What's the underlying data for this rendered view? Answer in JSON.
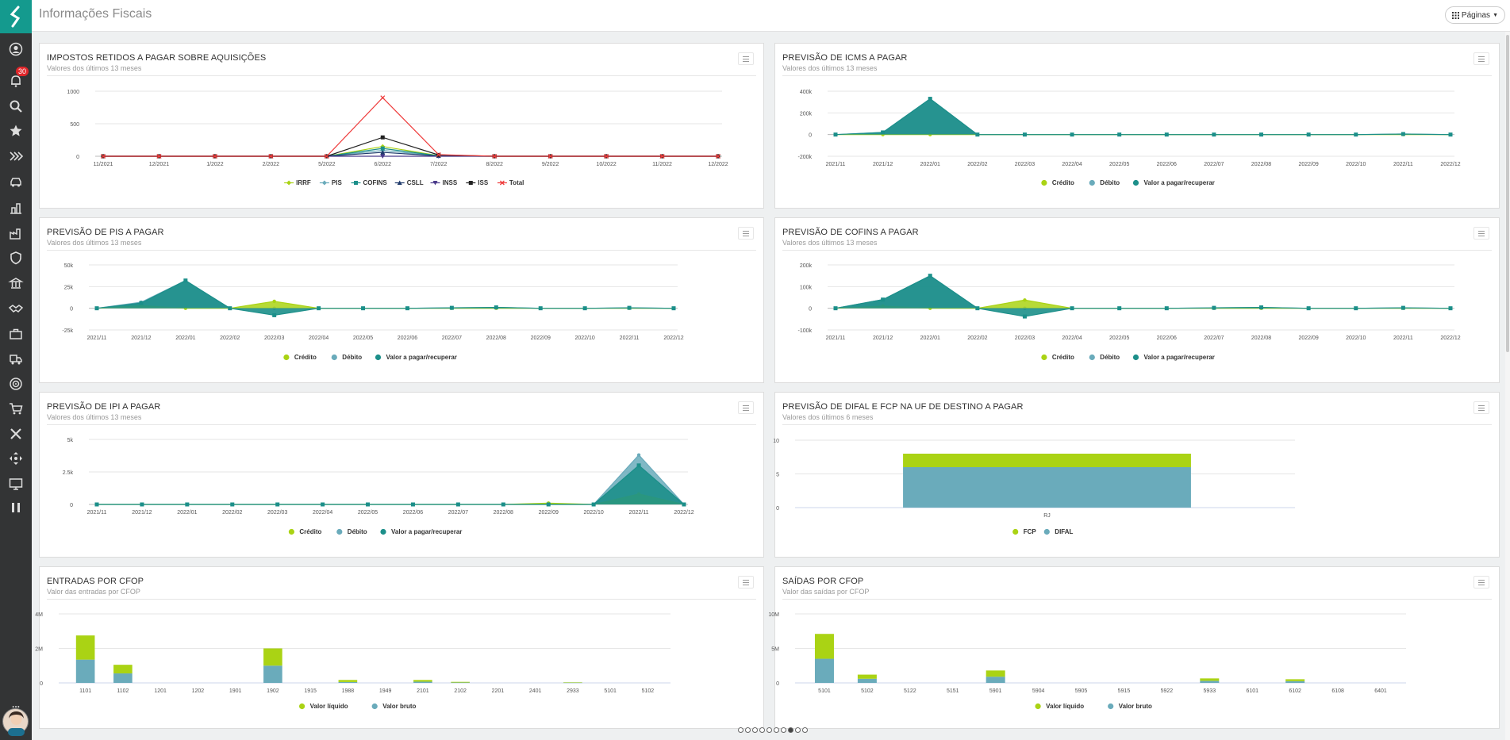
{
  "app": {
    "title": "Informações Fiscais",
    "pages_label": "Páginas",
    "notification_count": "30"
  },
  "sidebar": {
    "icons": [
      "user-icon",
      "bell-icon",
      "search-icon",
      "star-icon",
      "forward-icon",
      "car-icon",
      "building-icon",
      "factory-icon",
      "shield-icon",
      "bank-icon",
      "handshake-icon",
      "briefcase-icon",
      "truck-icon",
      "target-icon",
      "cart-icon",
      "x-icon",
      "cross-arrows-icon",
      "monitor-icon",
      "pause-icon"
    ],
    "more_label": "..."
  },
  "pager": {
    "total": 10,
    "active": 7
  },
  "colors": {
    "green": "#aad314",
    "blue": "#6aabbb",
    "teal": "#1c8f8a",
    "red": "#ee3b3b",
    "black": "#222"
  },
  "panels": [
    {
      "title": "IMPOSTOS RETIDOS A PAGAR SOBRE AQUISIÇÕES",
      "subtitle": "Valores dos últimos 13 meses"
    },
    {
      "title": "PREVISÃO DE ICMS A PAGAR",
      "subtitle": "Valores dos últimos 13 meses"
    },
    {
      "title": "PREVISÃO DE PIS A PAGAR",
      "subtitle": "Valores dos últimos 13 meses"
    },
    {
      "title": "PREVISÃO DE COFINS A PAGAR",
      "subtitle": "Valores dos últimos 13 meses"
    },
    {
      "title": "PREVISÃO DE IPI A PAGAR",
      "subtitle": "Valores dos últimos 13 meses"
    },
    {
      "title": "PREVISÃO DE DIFAL E FCP NA UF DE DESTINO A PAGAR",
      "subtitle": "Valores dos últimos 6 meses"
    },
    {
      "title": "ENTRADAS POR CFOP",
      "subtitle": "Valor das entradas por CFOP"
    },
    {
      "title": "SAÍDAS POR CFOP",
      "subtitle": "Valor das saídas por CFOP"
    }
  ],
  "chart_data": [
    {
      "type": "line",
      "categories": [
        "11/2021",
        "12/2021",
        "1/2022",
        "2/2022",
        "5/2022",
        "6/2022",
        "7/2022",
        "8/2022",
        "9/2022",
        "10/2022",
        "11/2022",
        "12/2022"
      ],
      "yticks": [
        "0",
        "500",
        "1000"
      ],
      "ylim": [
        0,
        1000
      ],
      "series": [
        {
          "name": "IRRF",
          "color": "#aad314",
          "marker": "diamond",
          "values": [
            0,
            0,
            0,
            0,
            0,
            150,
            10,
            0,
            0,
            0,
            0,
            0
          ]
        },
        {
          "name": "PIS",
          "color": "#6aabbb",
          "marker": "diamond",
          "values": [
            0,
            0,
            0,
            0,
            0,
            90,
            5,
            0,
            0,
            0,
            0,
            0
          ]
        },
        {
          "name": "COFINS",
          "color": "#1c8f8a",
          "marker": "square",
          "values": [
            0,
            0,
            0,
            0,
            0,
            120,
            8,
            0,
            0,
            0,
            0,
            0
          ]
        },
        {
          "name": "CSLL",
          "color": "#1f3a6b",
          "marker": "triangle",
          "values": [
            0,
            0,
            0,
            0,
            0,
            60,
            4,
            0,
            0,
            0,
            0,
            0
          ]
        },
        {
          "name": "INSS",
          "color": "#4a3a8a",
          "marker": "triangle-down",
          "values": [
            0,
            0,
            0,
            0,
            0,
            0,
            0,
            0,
            0,
            0,
            0,
            0
          ]
        },
        {
          "name": "ISS",
          "color": "#222222",
          "marker": "square",
          "values": [
            0,
            0,
            0,
            0,
            0,
            290,
            20,
            0,
            0,
            0,
            0,
            0
          ]
        },
        {
          "name": "Total",
          "color": "#ee3b3b",
          "marker": "x",
          "values": [
            0,
            0,
            0,
            0,
            0,
            900,
            25,
            0,
            0,
            0,
            0,
            0
          ]
        }
      ]
    },
    {
      "type": "area",
      "categories": [
        "2021/11",
        "2021/12",
        "2022/01",
        "2022/02",
        "2022/03",
        "2022/04",
        "2022/05",
        "2022/06",
        "2022/07",
        "2022/08",
        "2022/09",
        "2022/10",
        "2022/11",
        "2022/12"
      ],
      "yticks": [
        "-200k",
        "0",
        "200k",
        "400k"
      ],
      "ylim": [
        -200000,
        400000
      ],
      "series": [
        {
          "name": "Crédito",
          "color": "#aad314",
          "values": [
            0,
            0,
            0,
            0,
            0,
            0,
            0,
            0,
            0,
            0,
            0,
            0,
            0,
            0
          ]
        },
        {
          "name": "Débito",
          "color": "#6aabbb",
          "values": [
            0,
            20000,
            330000,
            0,
            0,
            0,
            0,
            0,
            0,
            0,
            0,
            0,
            5000,
            0
          ]
        },
        {
          "name": "Valor a pagar/recuperar",
          "color": "#1c8f8a",
          "values": [
            0,
            20000,
            330000,
            0,
            0,
            0,
            0,
            0,
            0,
            0,
            0,
            0,
            5000,
            0
          ]
        }
      ]
    },
    {
      "type": "area",
      "categories": [
        "2021/11",
        "2021/12",
        "2022/01",
        "2022/02",
        "2022/03",
        "2022/04",
        "2022/05",
        "2022/06",
        "2022/07",
        "2022/08",
        "2022/09",
        "2022/10",
        "2022/11",
        "2022/12"
      ],
      "yticks": [
        "-25k",
        "0",
        "25k",
        "50k"
      ],
      "ylim": [
        -25000,
        50000
      ],
      "series": [
        {
          "name": "Crédito",
          "color": "#aad314",
          "values": [
            0,
            3000,
            0,
            0,
            8000,
            0,
            0,
            0,
            0,
            0,
            0,
            0,
            0,
            0
          ]
        },
        {
          "name": "Débito",
          "color": "#6aabbb",
          "values": [
            0,
            7000,
            32000,
            0,
            0,
            0,
            0,
            0,
            500,
            1000,
            0,
            0,
            500,
            0
          ]
        },
        {
          "name": "Valor a pagar/recuperar",
          "color": "#1c8f8a",
          "values": [
            0,
            6000,
            32000,
            0,
            -8000,
            0,
            0,
            0,
            500,
            1000,
            0,
            0,
            500,
            0
          ]
        }
      ]
    },
    {
      "type": "area",
      "categories": [
        "2021/11",
        "2021/12",
        "2022/01",
        "2022/02",
        "2022/03",
        "2022/04",
        "2022/05",
        "2022/06",
        "2022/07",
        "2022/08",
        "2022/09",
        "2022/10",
        "2022/11",
        "2022/12"
      ],
      "yticks": [
        "-100k",
        "0",
        "100k",
        "200k"
      ],
      "ylim": [
        -100000,
        200000
      ],
      "series": [
        {
          "name": "Crédito",
          "color": "#aad314",
          "values": [
            0,
            10000,
            0,
            0,
            38000,
            0,
            0,
            0,
            0,
            0,
            0,
            0,
            0,
            0
          ]
        },
        {
          "name": "Débito",
          "color": "#6aabbb",
          "values": [
            0,
            40000,
            150000,
            0,
            0,
            0,
            0,
            0,
            2000,
            4000,
            0,
            0,
            2000,
            0
          ]
        },
        {
          "name": "Valor a pagar/recuperar",
          "color": "#1c8f8a",
          "values": [
            0,
            40000,
            150000,
            0,
            -38000,
            0,
            0,
            0,
            2000,
            4000,
            0,
            0,
            2000,
            0
          ]
        }
      ]
    },
    {
      "type": "area",
      "categories": [
        "2021/11",
        "2021/12",
        "2022/01",
        "2022/02",
        "2022/03",
        "2022/04",
        "2022/05",
        "2022/06",
        "2022/07",
        "2022/08",
        "2022/09",
        "2022/10",
        "2022/11",
        "2022/12"
      ],
      "yticks": [
        "0",
        "2.5k",
        "5k"
      ],
      "ylim": [
        0,
        5000
      ],
      "series": [
        {
          "name": "Crédito",
          "color": "#aad314",
          "values": [
            0,
            0,
            0,
            0,
            0,
            0,
            0,
            0,
            0,
            0,
            100,
            0,
            800,
            0
          ]
        },
        {
          "name": "Débito",
          "color": "#6aabbb",
          "values": [
            0,
            0,
            0,
            0,
            0,
            0,
            0,
            0,
            0,
            0,
            0,
            0,
            3800,
            0
          ]
        },
        {
          "name": "Valor a pagar/recuperar",
          "color": "#1c8f8a",
          "values": [
            0,
            0,
            0,
            0,
            0,
            0,
            0,
            0,
            0,
            0,
            0,
            0,
            3000,
            0
          ]
        }
      ]
    },
    {
      "type": "bar",
      "categories": [
        "RJ"
      ],
      "yticks": [
        "0",
        "5",
        "10"
      ],
      "ylim": [
        0,
        10
      ],
      "stacked": true,
      "series": [
        {
          "name": "FCP",
          "color": "#aad314",
          "values": [
            2
          ]
        },
        {
          "name": "DIFAL",
          "color": "#6aabbb",
          "values": [
            6
          ]
        }
      ]
    },
    {
      "type": "bar",
      "categories": [
        "1101",
        "1102",
        "1201",
        "1202",
        "1901",
        "1902",
        "1915",
        "1988",
        "1949",
        "2101",
        "2102",
        "2201",
        "2401",
        "2933",
        "5101",
        "5102"
      ],
      "yticks": [
        "0",
        "2M",
        "4M"
      ],
      "ylim": [
        0,
        4000000
      ],
      "stacked": true,
      "series": [
        {
          "name": "Valor líquido",
          "color": "#aad314",
          "values": [
            1400000,
            500000,
            0,
            0,
            0,
            1000000,
            0,
            120000,
            0,
            100000,
            40000,
            0,
            0,
            20000,
            0,
            0
          ]
        },
        {
          "name": "Valor bruto",
          "color": "#6aabbb",
          "values": [
            1350000,
            550000,
            0,
            0,
            0,
            1000000,
            0,
            50000,
            0,
            70000,
            20000,
            0,
            0,
            15000,
            0,
            0
          ]
        }
      ]
    },
    {
      "type": "bar",
      "categories": [
        "5101",
        "5102",
        "5122",
        "5151",
        "5901",
        "5904",
        "5905",
        "5915",
        "5922",
        "5933",
        "6101",
        "6102",
        "6108",
        "6401"
      ],
      "yticks": [
        "0",
        "5M",
        "10M"
      ],
      "ylim": [
        0,
        10000000
      ],
      "stacked": true,
      "series": [
        {
          "name": "Valor líquido",
          "color": "#aad314",
          "values": [
            3600000,
            600000,
            0,
            0,
            900000,
            0,
            0,
            0,
            0,
            350000,
            0,
            280000,
            0,
            0
          ]
        },
        {
          "name": "Valor bruto",
          "color": "#6aabbb",
          "values": [
            3500000,
            600000,
            0,
            0,
            900000,
            0,
            0,
            0,
            0,
            300000,
            0,
            250000,
            0,
            0
          ]
        }
      ]
    }
  ]
}
